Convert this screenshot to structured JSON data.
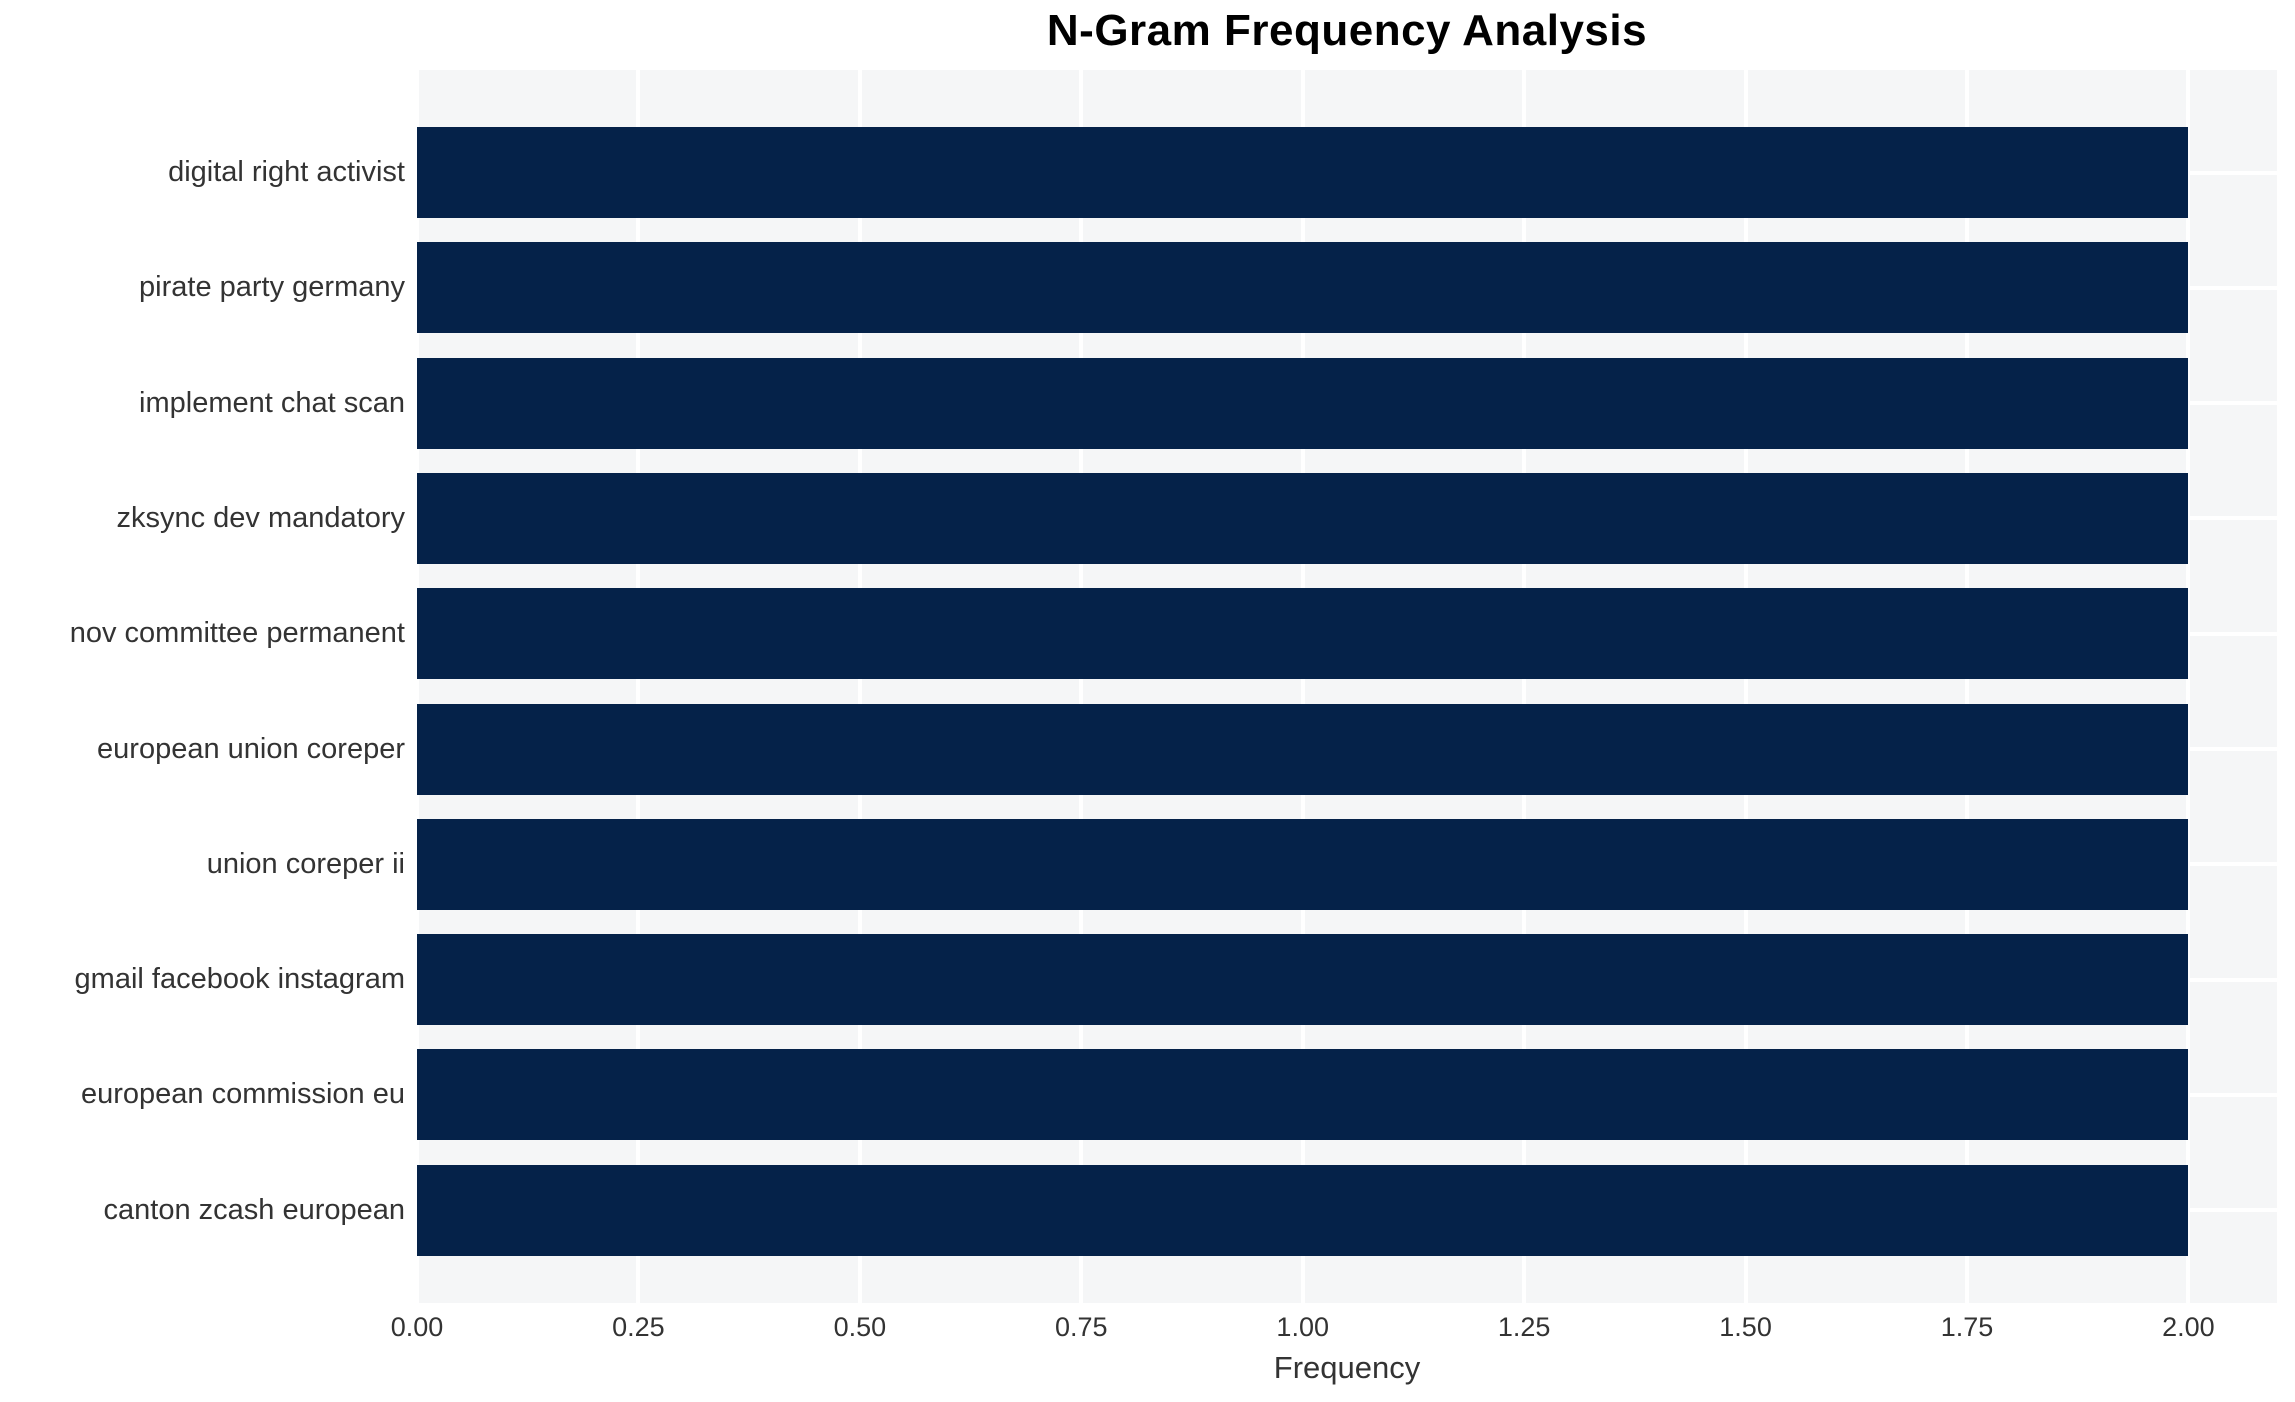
{
  "chart_data": {
    "type": "bar",
    "orientation": "horizontal",
    "title": "N-Gram Frequency Analysis",
    "xlabel": "Frequency",
    "ylabel": "",
    "categories": [
      "digital right activist",
      "pirate party germany",
      "implement chat scan",
      "zksync dev mandatory",
      "nov committee permanent",
      "european union coreper",
      "union coreper ii",
      "gmail facebook instagram",
      "european commission eu",
      "canton zcash european"
    ],
    "values": [
      2,
      2,
      2,
      2,
      2,
      2,
      2,
      2,
      2,
      2
    ],
    "xlim": [
      0,
      2.1
    ],
    "xticks": [
      0,
      0.25,
      0.5,
      0.75,
      1.0,
      1.25,
      1.5,
      1.75,
      2.0
    ],
    "xtick_labels": [
      "0.00",
      "0.25",
      "0.50",
      "0.75",
      "1.00",
      "1.25",
      "1.50",
      "1.75",
      "2.00"
    ],
    "grid": true,
    "legend": false,
    "colors": {
      "bar": "#052249",
      "plot_background": "#f5f6f7",
      "gridline": "#ffffff",
      "figure_background": "#ffffff",
      "title_text": "#000000",
      "tick_text": "#333333"
    }
  }
}
